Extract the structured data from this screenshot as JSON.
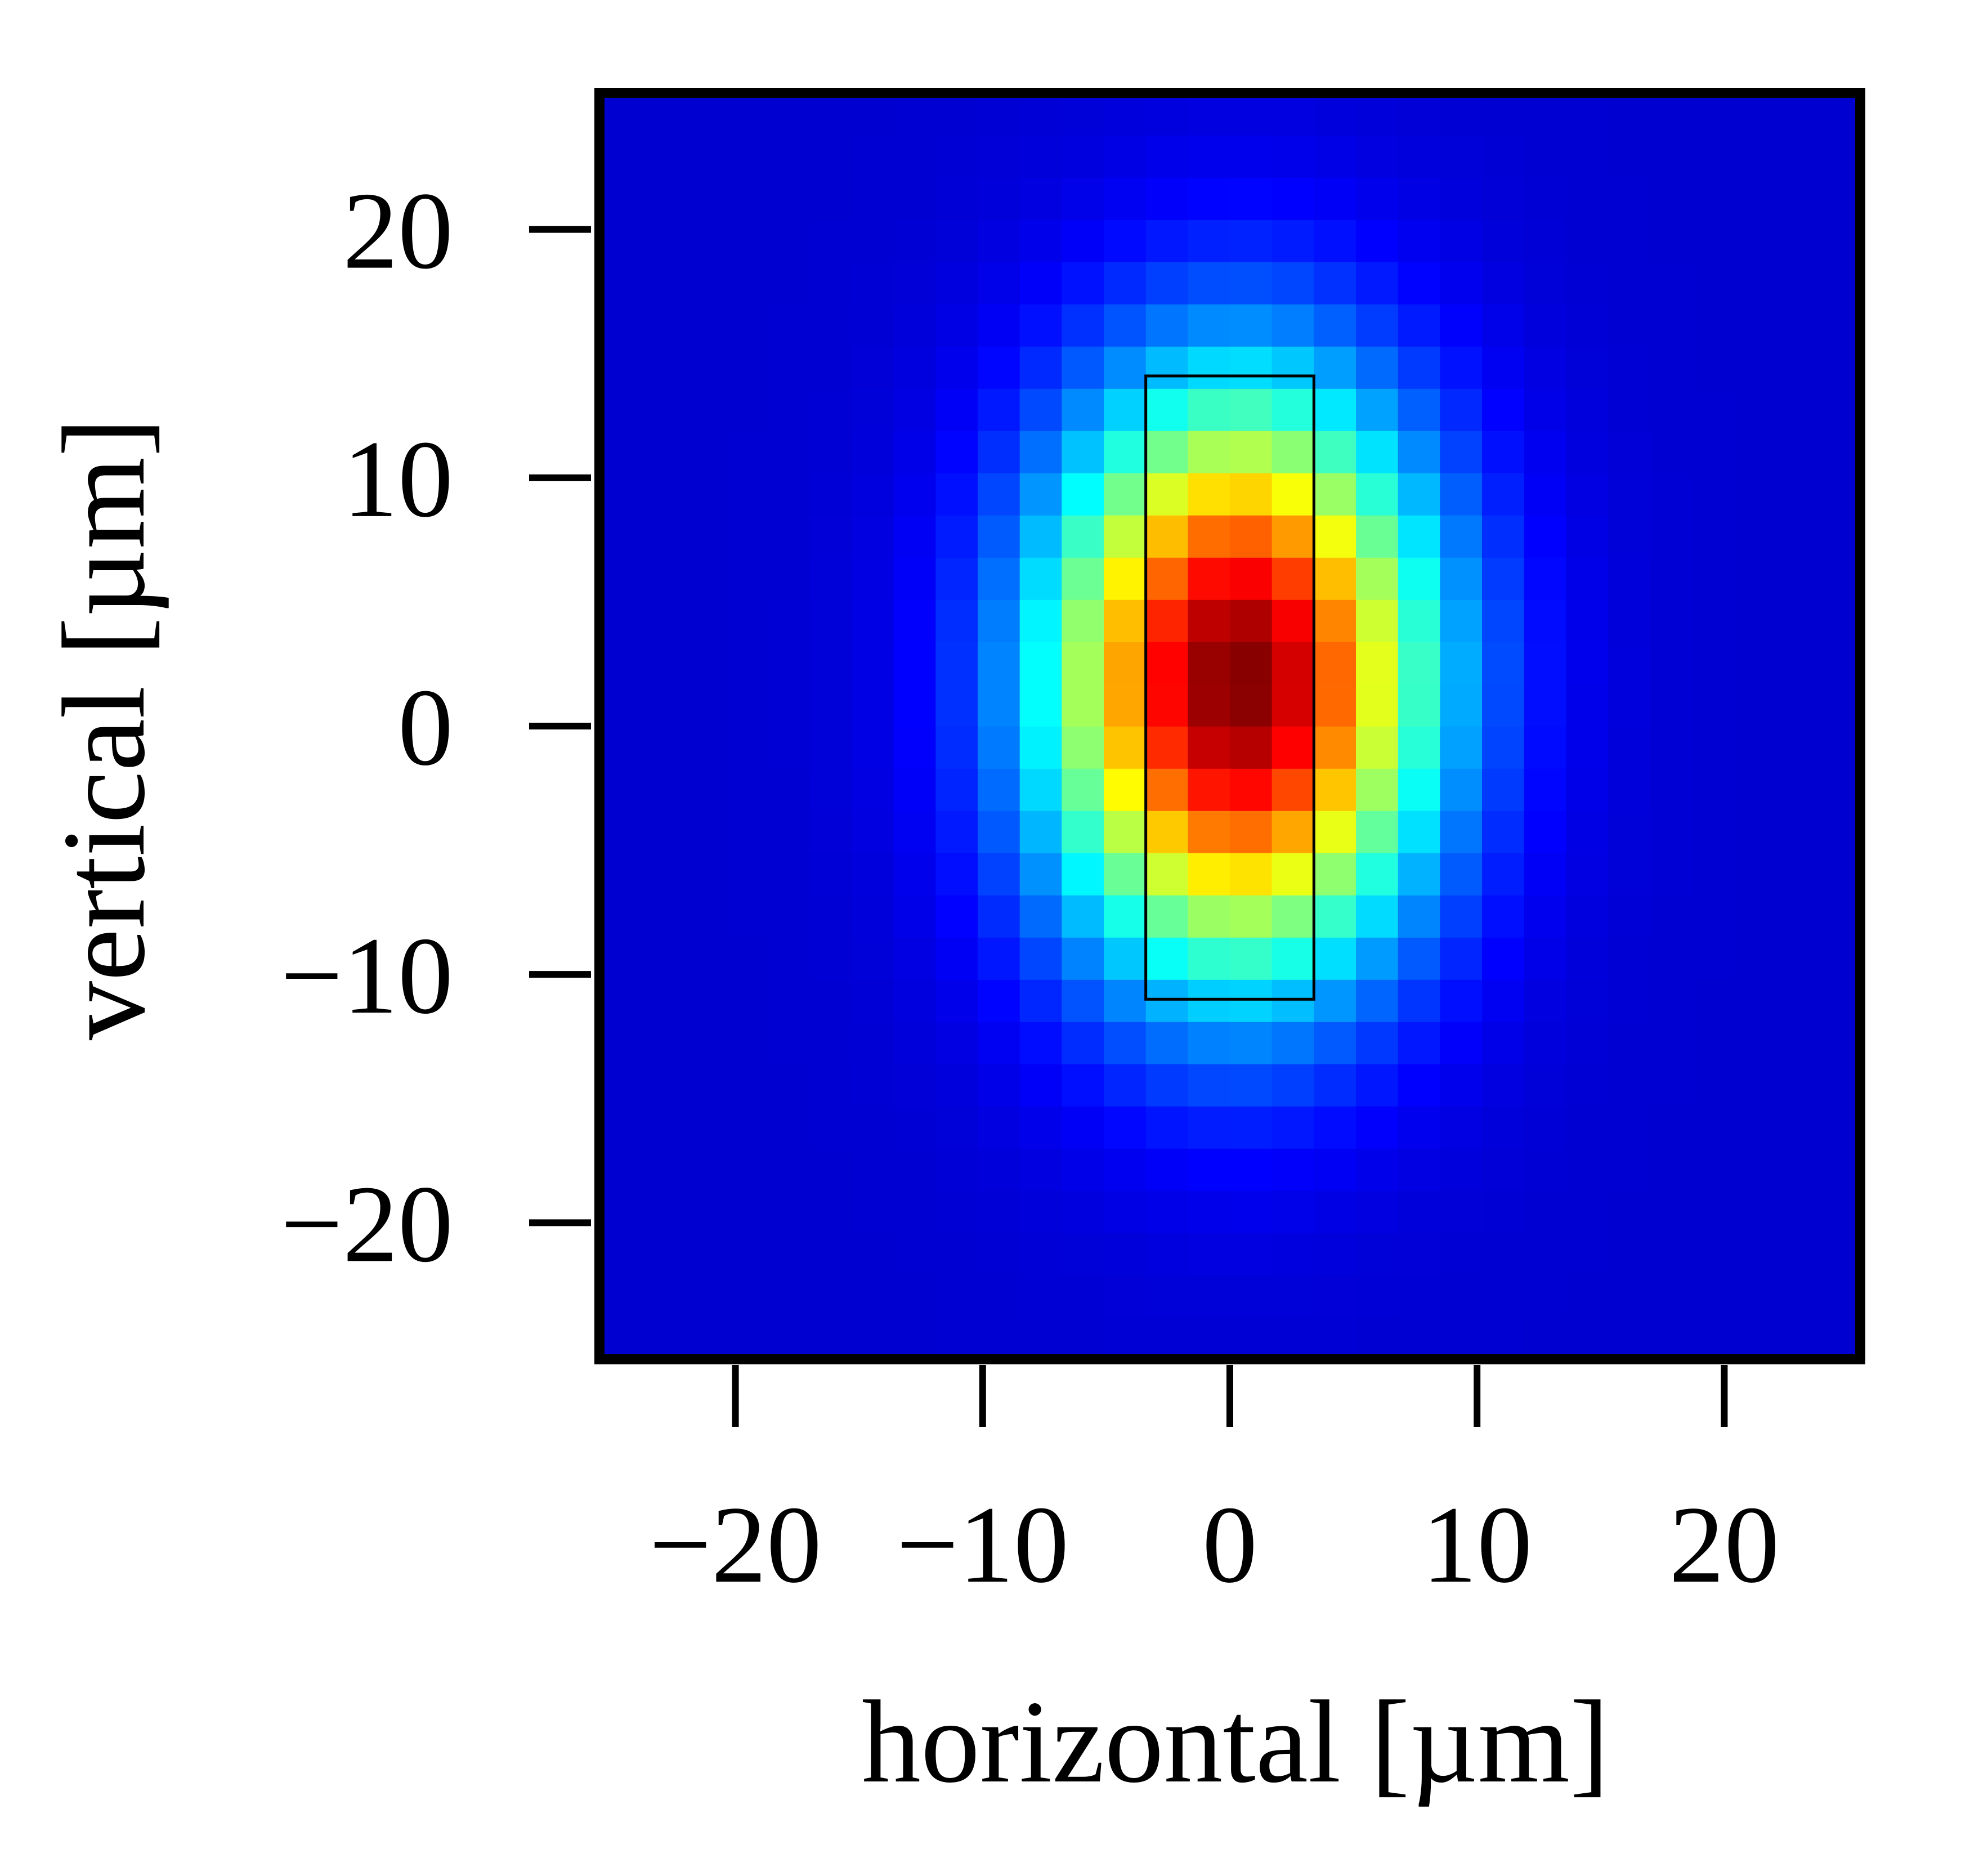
{
  "chart_data": {
    "type": "heatmap",
    "title": "",
    "xlabel": "horizontal [µm]",
    "ylabel": "vertical [µm]",
    "xlim": [
      -25.5,
      25.5
    ],
    "ylim": [
      -25.5,
      25.5
    ],
    "xticks": [
      -20,
      -10,
      0,
      10,
      20
    ],
    "yticks": [
      -20,
      -10,
      0,
      10,
      20
    ],
    "xtick_labels": [
      "−20",
      "−10",
      "0",
      "10",
      "20"
    ],
    "ytick_labels": [
      "−20",
      "−10",
      "0",
      "10",
      "20"
    ],
    "colormap": "jet",
    "grid": false,
    "legend": "none",
    "bins": {
      "x": 30,
      "y": 30
    },
    "peak": {
      "x": 0.3,
      "y": 1.8
    },
    "sigma": {
      "x": 5.3,
      "y": 8.0
    },
    "overlay_rect": {
      "x0": -3.4,
      "x1": 3.4,
      "y0": -11.0,
      "y1": 14.1
    }
  }
}
